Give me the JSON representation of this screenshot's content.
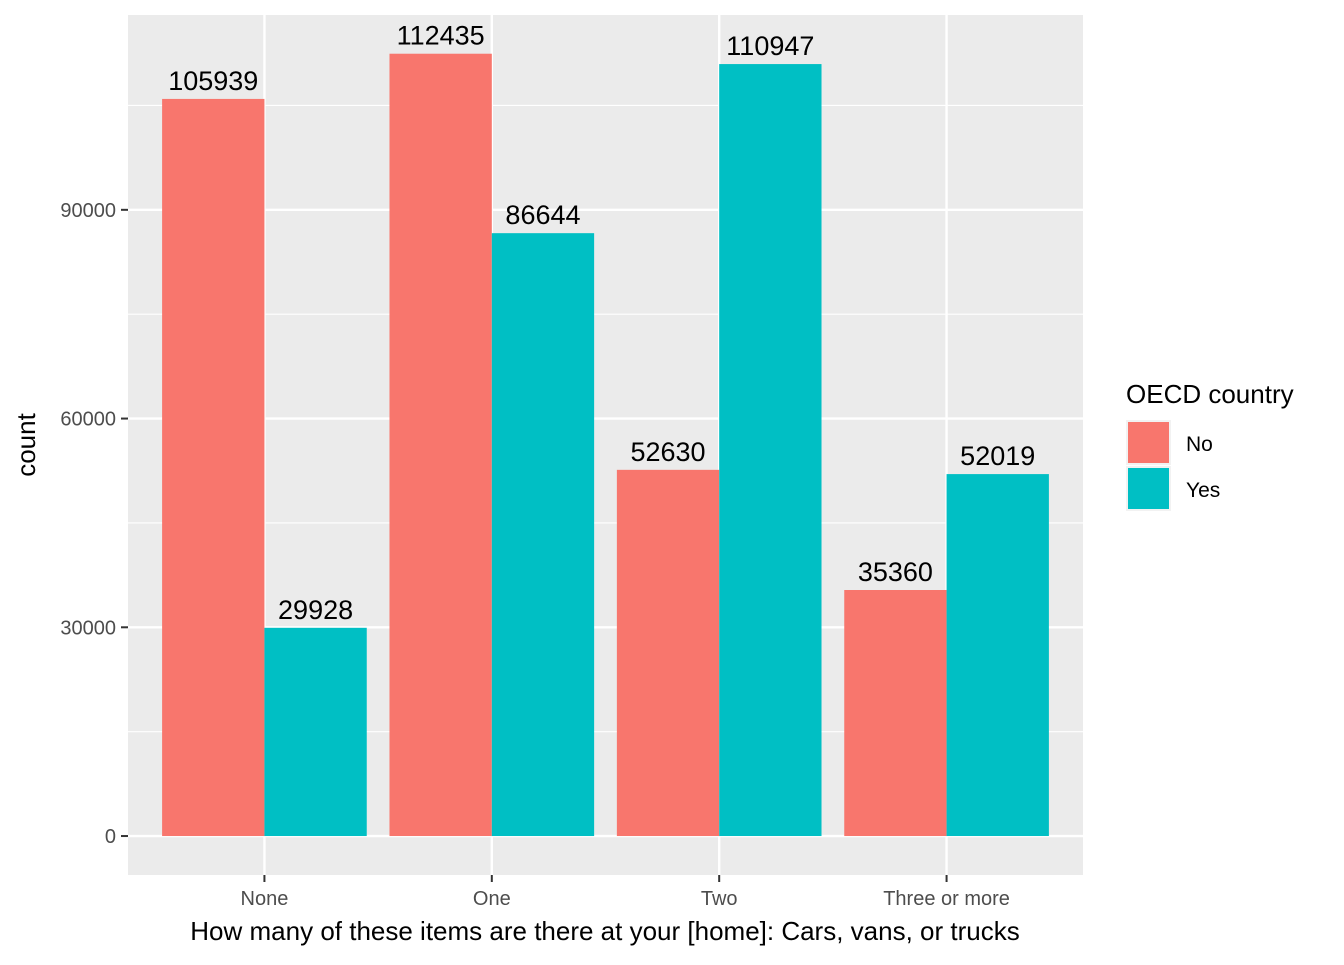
{
  "chart_data": {
    "type": "bar",
    "categories": [
      "None",
      "One",
      "Two",
      "Three or more"
    ],
    "series": [
      {
        "name": "No",
        "color": "#F8766D",
        "values": [
          105939,
          112435,
          52630,
          35360
        ]
      },
      {
        "name": "Yes",
        "color": "#00BFC4",
        "values": [
          29928,
          86644,
          110947,
          52019
        ]
      }
    ],
    "xlabel": "How many of these items are there at your [home]: Cars, vans, or trucks",
    "ylabel": "count",
    "ylim": [
      -5600,
      118000
    ],
    "yticks": [
      0,
      30000,
      60000,
      90000
    ],
    "ytick_labels": [
      "0",
      "30000",
      "60000",
      "90000"
    ],
    "legend": {
      "title": "OECD country",
      "position": "right"
    },
    "grid": true,
    "panel_background": "#EBEBEB",
    "data_labels": true
  }
}
